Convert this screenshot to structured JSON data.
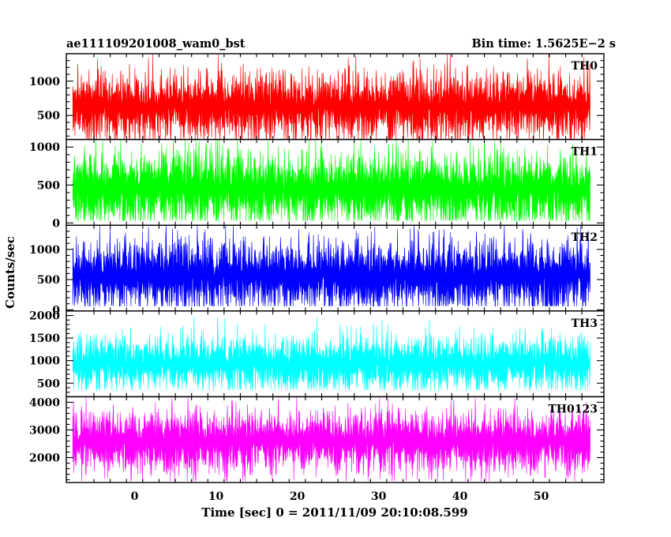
{
  "chart_data": {
    "type": "line",
    "title_left": "ae111109201008_wam0_bst",
    "title_right": "Bin time: 1.5625E−2 s",
    "xlabel": "Time [sec] 0 = 2011/11/09 20:10:08.599",
    "ylabel": "Counts/sec",
    "xlim": [
      -8.4,
      57.7
    ],
    "data_x_range": [
      -7.6,
      56.0
    ],
    "x_ticks": [
      0,
      10,
      20,
      30,
      40,
      50
    ],
    "x_tick_labels": [
      "0",
      "10",
      "20",
      "30",
      "40",
      "50"
    ],
    "grid": false,
    "series": [
      {
        "name": "TH0",
        "color": "#ff0000",
        "ylim": [
          150,
          1400
        ],
        "y_ticks": [
          500,
          1000
        ],
        "y_tick_labels": [
          "500",
          "1000"
        ],
        "mean": 640,
        "sigma": 230,
        "floor": 120,
        "ceil": 1400
      },
      {
        "name": "TH1",
        "color": "#00ff00",
        "ylim": [
          -30,
          1100
        ],
        "y_ticks": [
          0,
          500,
          1000
        ],
        "y_tick_labels": [
          "0",
          "500",
          "1000"
        ],
        "mean": 450,
        "sigma": 230,
        "floor": 30,
        "ceil": 1100
      },
      {
        "name": "TH2",
        "color": "#0000ff",
        "ylim": [
          -20,
          1400
        ],
        "y_ticks": [
          0,
          500,
          1000
        ],
        "y_tick_labels": [
          "0",
          "500",
          "1000"
        ],
        "mean": 560,
        "sigma": 270,
        "floor": 60,
        "ceil": 1400
      },
      {
        "name": "TH3",
        "color": "#00ffff",
        "ylim": [
          200,
          2100
        ],
        "y_ticks": [
          500,
          1000,
          1500,
          2000
        ],
        "y_tick_labels": [
          "500",
          "1000",
          "1500",
          "2000"
        ],
        "mean": 950,
        "sigma": 280,
        "floor": 350,
        "ceil": 2100
      },
      {
        "name": "TH0123",
        "color": "#ff00ff",
        "ylim": [
          1100,
          4200
        ],
        "y_ticks": [
          2000,
          3000,
          4000
        ],
        "y_tick_labels": [
          "2000",
          "3000",
          "4000"
        ],
        "mean": 2600,
        "sigma": 500,
        "floor": 1150,
        "ceil": 4200
      }
    ]
  }
}
